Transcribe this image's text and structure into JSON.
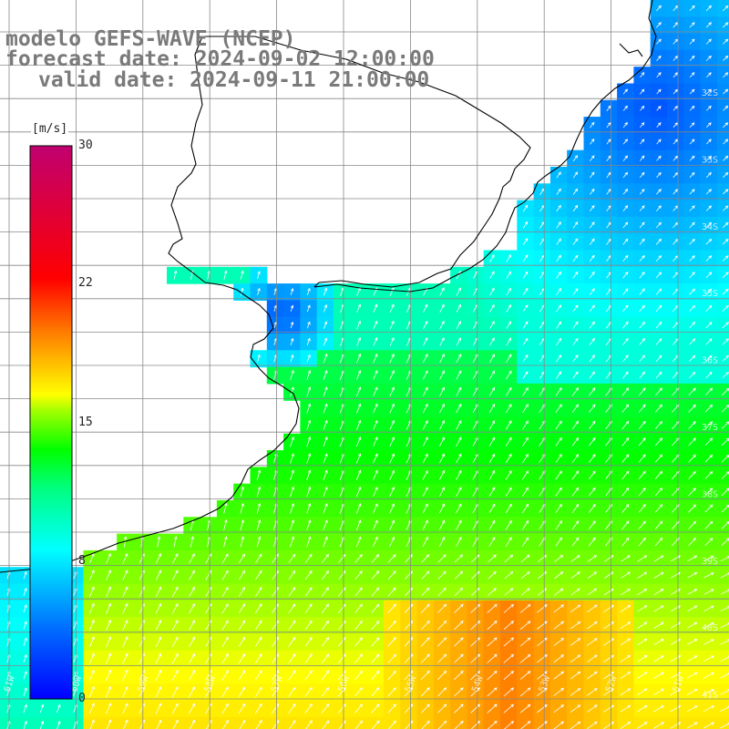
{
  "title": {
    "line1": "modelo GEFS-WAVE (NCEP)",
    "line2": "forecast date: 2024-09-02 12:00:00",
    "line3": "valid date: 2024-09-11 21:00:00"
  },
  "colorbar": {
    "unit": "[m/s]",
    "ticks": [
      "30",
      "22",
      "15",
      "8",
      "0"
    ],
    "tick_values": [
      30,
      22,
      15,
      8,
      0
    ],
    "min": 0,
    "max": 30,
    "colors": [
      "#0000ff",
      "#0080ff",
      "#00e0ff",
      "#00ff80",
      "#00ff00",
      "#c0ff00",
      "#ffff00",
      "#ff8000",
      "#ff0000",
      "#c00070"
    ]
  },
  "map": {
    "lat_labels": [
      "32S",
      "33S",
      "34S",
      "35S",
      "36S",
      "37S",
      "38S",
      "39S",
      "40S",
      "41S"
    ],
    "lon_labels": [
      "61W",
      "60W",
      "59W",
      "58W",
      "57W",
      "56W",
      "55W",
      "54W",
      "53W",
      "52W",
      "51W"
    ],
    "land_color": "#ffffff",
    "grid_color": "#888888",
    "coast_color": "#000000",
    "arrow_color": "#ffffff"
  }
}
